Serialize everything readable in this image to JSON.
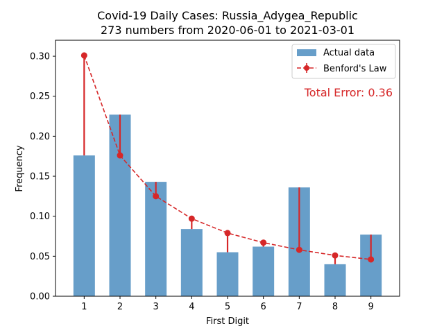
{
  "chart_data": {
    "type": "bar",
    "title_lines": [
      "Covid-19 Daily Cases: Russia_Adygea_Republic",
      "273 numbers from 2020-06-01 to 2021-03-01"
    ],
    "xlabel": "First Digit",
    "ylabel": "Frequency",
    "categories": [
      "1",
      "2",
      "3",
      "4",
      "5",
      "6",
      "7",
      "8",
      "9"
    ],
    "ylim": [
      0,
      0.32
    ],
    "yticks": [
      0.0,
      0.05,
      0.1,
      0.15,
      0.2,
      0.25,
      0.3
    ],
    "ytick_labels": [
      "0.00",
      "0.05",
      "0.10",
      "0.15",
      "0.20",
      "0.25",
      "0.30"
    ],
    "series": [
      {
        "name": "Actual data",
        "kind": "bar",
        "color": "#4c8dbf",
        "values": [
          0.176,
          0.227,
          0.143,
          0.084,
          0.055,
          0.062,
          0.136,
          0.04,
          0.077
        ]
      },
      {
        "name": "Benford's Law",
        "kind": "line",
        "style": "dashed",
        "marker": "circle",
        "color": "#d62728",
        "values": [
          0.301,
          0.176,
          0.125,
          0.097,
          0.079,
          0.067,
          0.058,
          0.051,
          0.046
        ]
      }
    ],
    "annotation": "Total Error: 0.36",
    "legend_position": "top-right",
    "grid": false
  }
}
